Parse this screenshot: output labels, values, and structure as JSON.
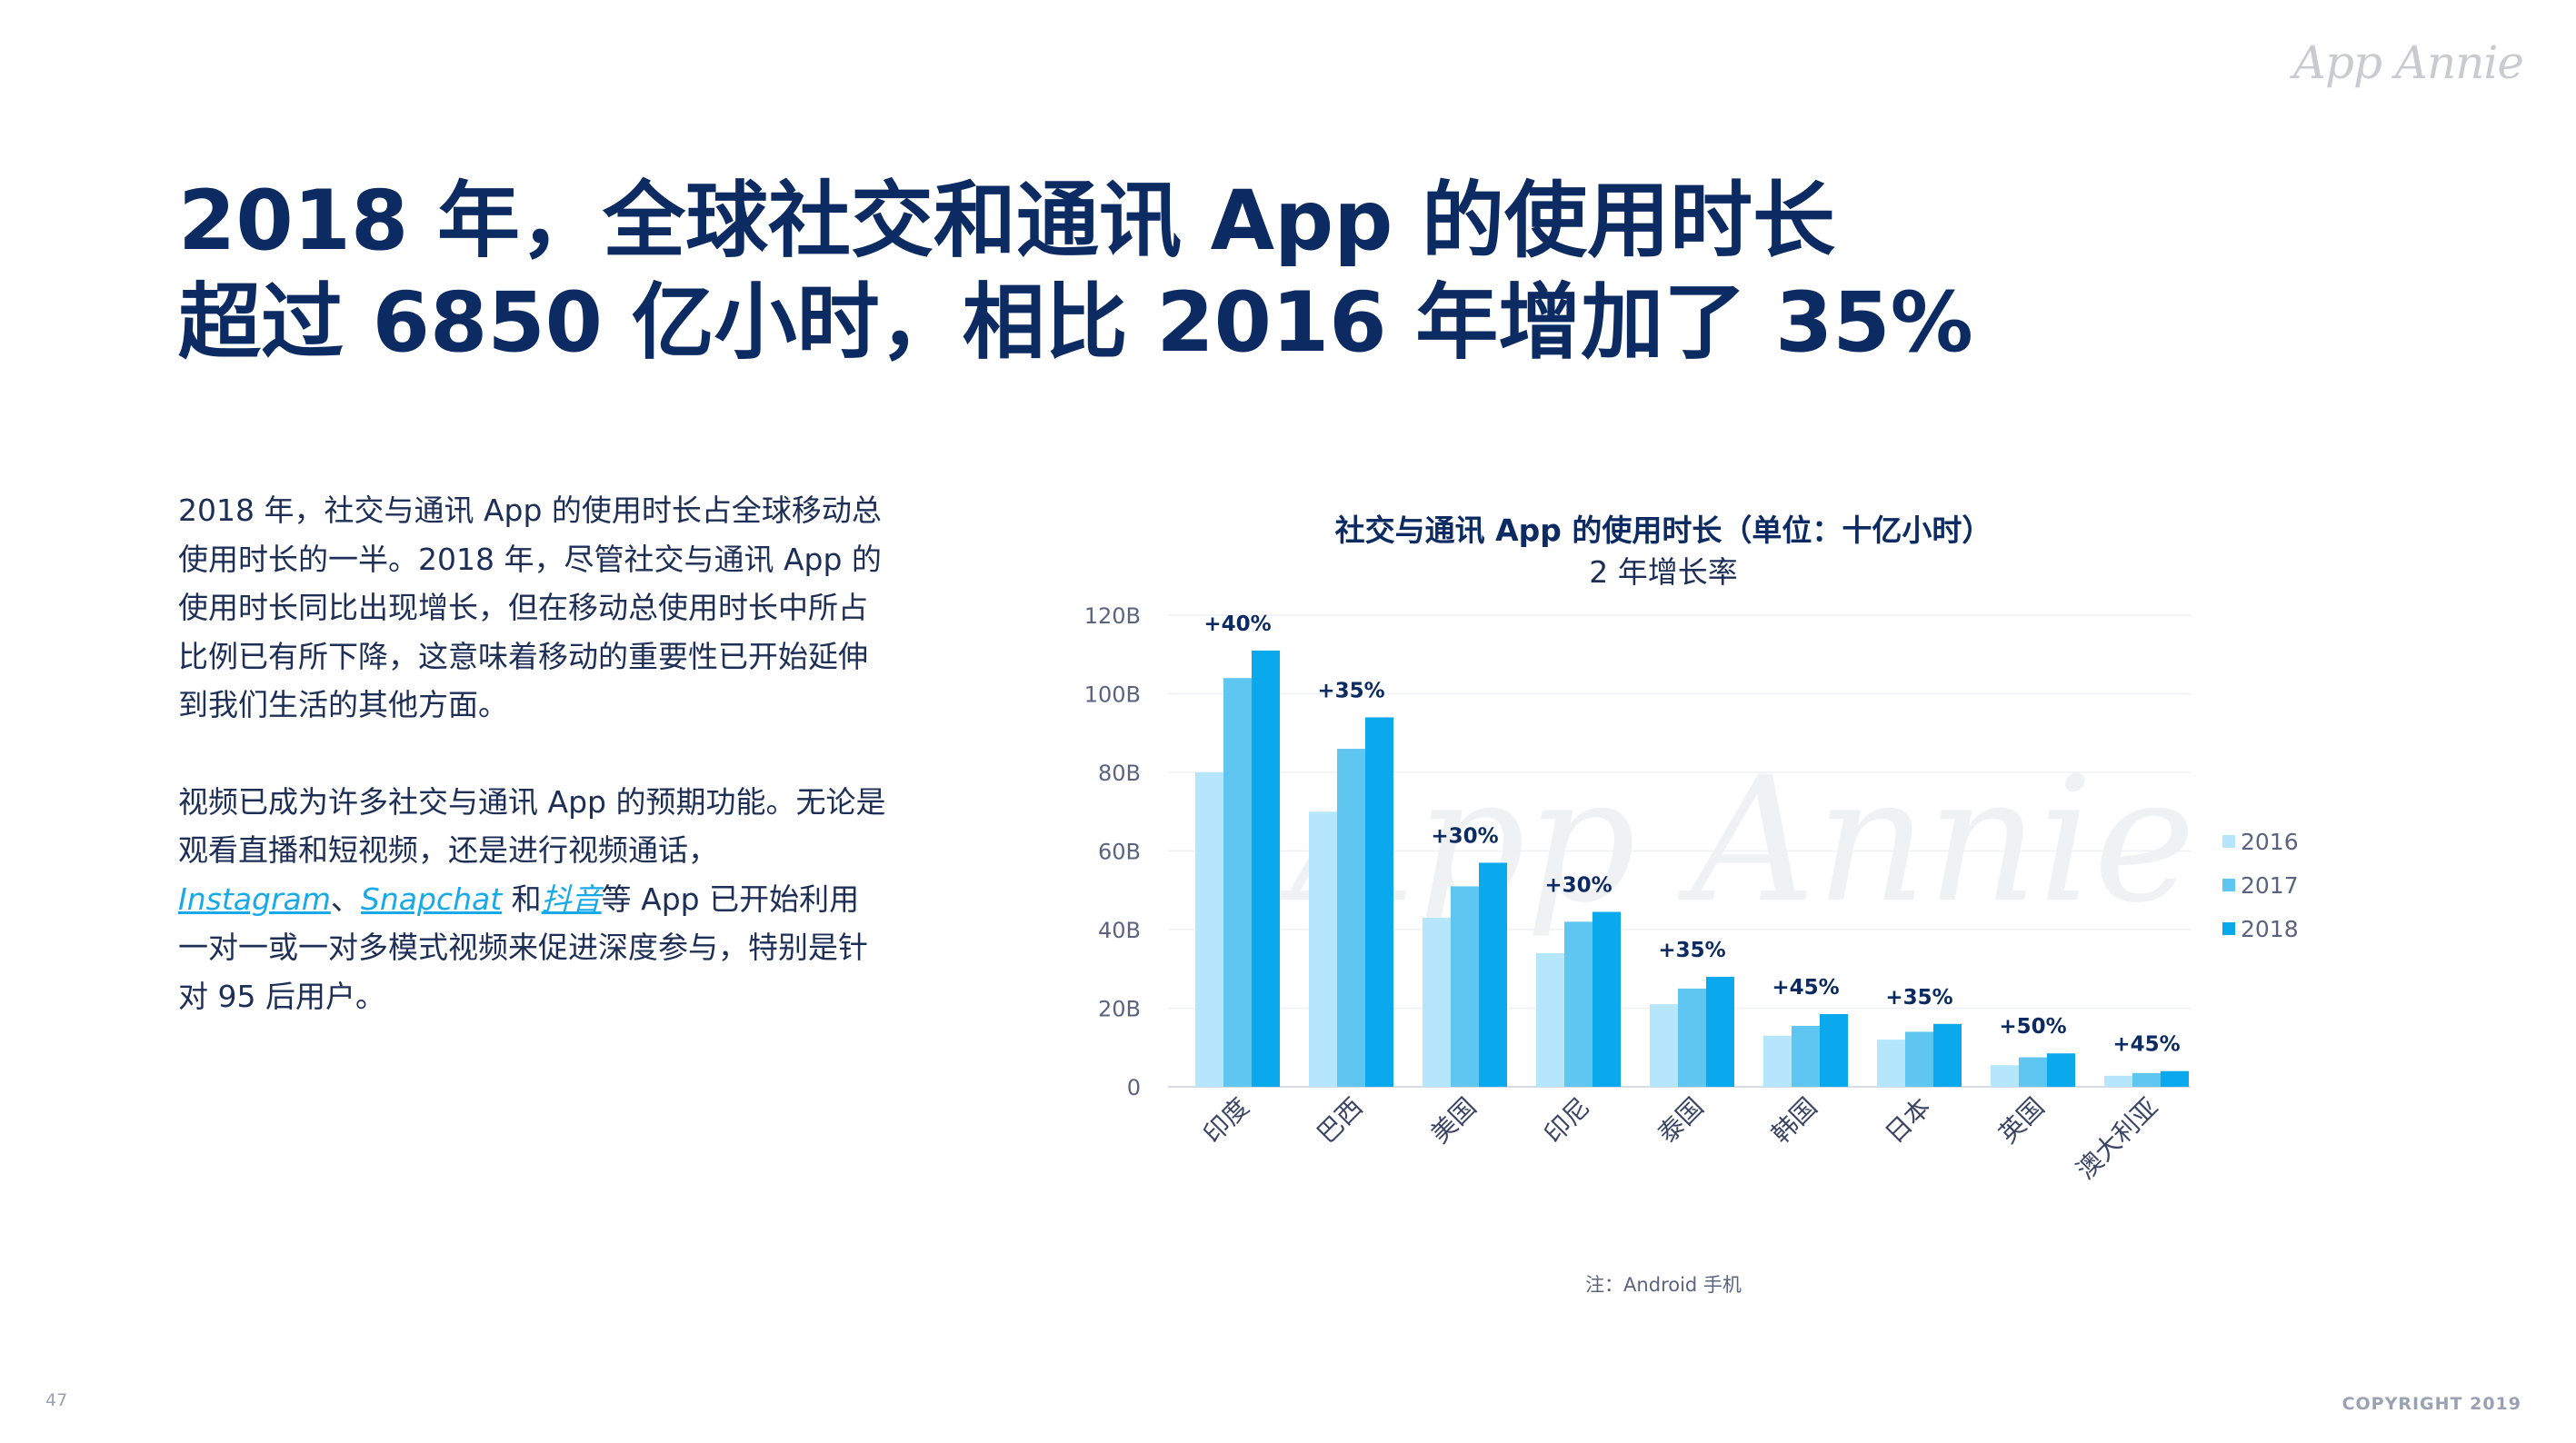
{
  "brand": {
    "logo_text": "App Annie"
  },
  "title": {
    "line1": "2018 年，全球社交和通讯 App 的使用时长",
    "line2": "超过 6850 亿小时，相比 2016 年增加了 35%"
  },
  "body": {
    "p1": "2018 年，社交与通讯 App 的使用时长占全球移动总使用时长的一半。2018 年，尽管社交与通讯 App 的使用时长同比出现增长，但在移动总使用时长中所占比例已有所下降，这意味着移动的重要性已开始延伸到我们生活的其他方面。",
    "p2_start": "视频已成为许多社交与通讯 App 的预期功能。无论是观看直播和短视频，还是进行视频通话，",
    "link_instagram": "Instagram",
    "sep1": "、",
    "link_snapchat": "Snapchat",
    "sep2": " 和",
    "link_douyin": "抖音",
    "p2_end": "等 App 已开始利用一对一或一对多模式视频来促进深度参与，特别是针对 95 后用户。"
  },
  "chart_data": {
    "type": "bar",
    "title": "社交与通讯 App 的使用时长（单位：十亿小时）",
    "subtitle": "2 年增长率",
    "categories": [
      "印度",
      "巴西",
      "美国",
      "印尼",
      "泰国",
      "韩国",
      "日本",
      "英国",
      "澳大利亚"
    ],
    "series": [
      {
        "name": "2016",
        "values": [
          80,
          70,
          43,
          34,
          21,
          13,
          12,
          5.5,
          2.8
        ]
      },
      {
        "name": "2017",
        "values": [
          104,
          86,
          51,
          42,
          25,
          15.5,
          14,
          7.5,
          3.5
        ]
      },
      {
        "name": "2018",
        "values": [
          111,
          94,
          57,
          44.5,
          28,
          18.5,
          16,
          8.5,
          4
        ]
      }
    ],
    "growth_labels": [
      "+40%",
      "+35%",
      "+30%",
      "+30%",
      "+35%",
      "+45%",
      "+35%",
      "+50%",
      "+45%"
    ],
    "y_ticks": [
      "0",
      "20B",
      "40B",
      "60B",
      "80B",
      "100B",
      "120B"
    ],
    "ylim": [
      0,
      120
    ],
    "grid": true,
    "legend_position": "right",
    "colors": [
      "#b5e6fb",
      "#5fc6f1",
      "#0aa8ec"
    ],
    "watermark": "App Annie"
  },
  "note": "注：Android 手机",
  "footer": {
    "page_number": "47",
    "copyright": "COPYRIGHT 2019"
  }
}
